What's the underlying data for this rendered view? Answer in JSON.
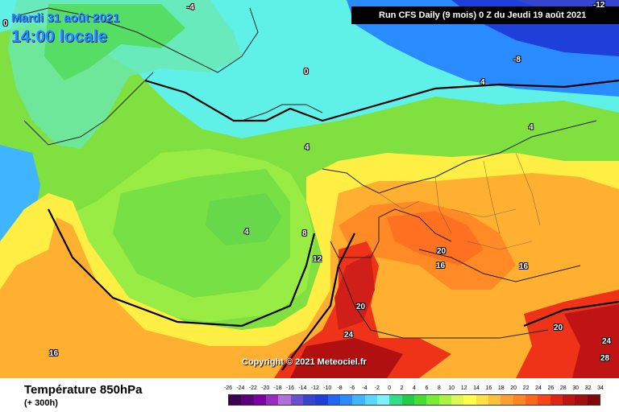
{
  "header": {
    "date": "Mardi 31 août 2021",
    "time": "14:00 locale",
    "run": "Run CFS Daily (9 mois) 0 Z du Jeudi 19 août 2021"
  },
  "copyright": "Copyright © 2021 Meteociel.fr",
  "footer": {
    "parameter": "Température 850hPa",
    "step": "(+ 300h)"
  },
  "colors": {
    "purple": "#5a00a0",
    "blue": "#1e90ff",
    "cyan": "#66eeff",
    "green": "#55dd55",
    "yellow": "#ffee55",
    "orange": "#ff9922",
    "red": "#ee2222",
    "darkred": "#990000"
  },
  "legend": {
    "ticks": [
      "-26",
      "-24",
      "-22",
      "-20",
      "-18",
      "-16",
      "-14",
      "-12",
      "-10",
      "-8",
      "-6",
      "-4",
      "-2",
      "0",
      "2",
      "4",
      "6",
      "8",
      "10",
      "12",
      "14",
      "16",
      "18",
      "20",
      "22",
      "24",
      "26",
      "28",
      "30",
      "32",
      "34"
    ],
    "colors": [
      "#3d0050",
      "#5a0078",
      "#7a00a0",
      "#9a2ac0",
      "#b070d8",
      "#6a4fcf",
      "#3545d0",
      "#1e3fd8",
      "#1f66f2",
      "#2a8bff",
      "#3fb4ff",
      "#5dd6ff",
      "#7ef0ff",
      "#33dd88",
      "#22cc44",
      "#44dd33",
      "#77ee33",
      "#aaf244",
      "#ddf855",
      "#ffff44",
      "#ffe044",
      "#ffc03a",
      "#ffa030",
      "#ff8424",
      "#ff6618",
      "#f84418",
      "#e02418",
      "#c01414",
      "#a00e0e",
      "#800808"
    ]
  },
  "contour_labels": [
    {
      "text": "-4",
      "cls": "white"
    },
    {
      "text": "-8",
      "cls": "white"
    },
    {
      "text": "-12",
      "cls": "white"
    },
    {
      "text": "0",
      "cls": "white"
    },
    {
      "text": "4",
      "cls": "white"
    },
    {
      "text": "4",
      "cls": "white"
    },
    {
      "text": "4",
      "cls": "white"
    },
    {
      "text": "4",
      "cls": "white"
    },
    {
      "text": "8",
      "cls": "white"
    },
    {
      "text": "12",
      "cls": "white"
    },
    {
      "text": "16",
      "cls": "white"
    },
    {
      "text": "16",
      "cls": "white"
    },
    {
      "text": "16",
      "cls": "white"
    },
    {
      "text": "20",
      "cls": "white"
    },
    {
      "text": "20",
      "cls": "white"
    },
    {
      "text": "20",
      "cls": "white"
    },
    {
      "text": "24",
      "cls": "white"
    },
    {
      "text": "24",
      "cls": "white"
    },
    {
      "text": "28",
      "cls": "white"
    },
    {
      "text": "0",
      "cls": "white"
    }
  ]
}
